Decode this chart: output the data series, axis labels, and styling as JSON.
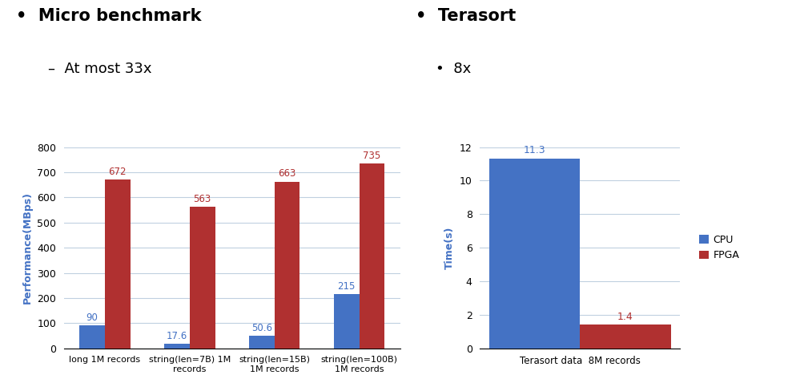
{
  "left_chart": {
    "categories": [
      "long 1M records",
      "string(len=7B) 1M\nrecords",
      "string(len=15B)\n1M records",
      "string(len=100B)\n1M records"
    ],
    "cpu_values": [
      90,
      17.6,
      50.6,
      215
    ],
    "fpga_values": [
      672,
      563,
      663,
      735
    ],
    "cpu_labels": [
      "90",
      "17.6",
      "50.6",
      "215"
    ],
    "fpga_labels": [
      "672",
      "563",
      "663",
      "735"
    ],
    "ylabel": "Performance(MBps)",
    "ylim": [
      0,
      800
    ],
    "yticks": [
      0,
      100,
      200,
      300,
      400,
      500,
      600,
      700,
      800
    ],
    "cpu_color": "#4472C4",
    "fpga_color": "#B03030",
    "legend_labels": [
      "CPU",
      "FPGA"
    ]
  },
  "right_chart": {
    "categories": [
      "Terasort data  8M records"
    ],
    "cpu_values": [
      11.3
    ],
    "fpga_values": [
      1.4
    ],
    "cpu_labels": [
      "11.3"
    ],
    "fpga_labels": [
      "1.4"
    ],
    "ylabel": "Time(s)",
    "ylim": [
      0,
      12
    ],
    "yticks": [
      0,
      2,
      4,
      6,
      8,
      10,
      12
    ],
    "cpu_color": "#4472C4",
    "fpga_color": "#B03030",
    "legend_labels": [
      "CPU",
      "FPGA"
    ]
  },
  "background_color": "#ffffff",
  "bar_width": 0.3,
  "title_left": "•  Micro benchmark",
  "subtitle_left": "–  At most 33x",
  "title_right": "•  Terasort",
  "subtitle_right": "•  8x"
}
